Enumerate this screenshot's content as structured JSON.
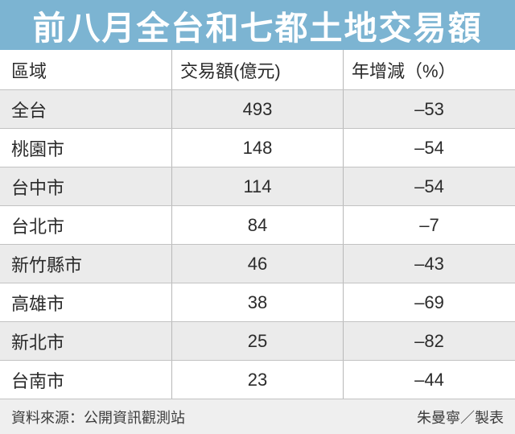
{
  "title": "前八月全台和七都土地交易額",
  "colors": {
    "title_bar_bg": "#7cb4d2",
    "title_text": "#ffffff",
    "stripe_row_bg": "#ebebeb",
    "footer_bg": "#efefef",
    "grid_line": "#c2c2c2"
  },
  "table": {
    "headers": [
      "區域",
      "交易額(億元)",
      "年增減（%）"
    ],
    "rows": [
      {
        "region": "全台",
        "amount": "493",
        "yoy": "–53"
      },
      {
        "region": "桃園市",
        "amount": "148",
        "yoy": "–54"
      },
      {
        "region": "台中市",
        "amount": "114",
        "yoy": "–54"
      },
      {
        "region": "台北市",
        "amount": "84",
        "yoy": "–7"
      },
      {
        "region": "新竹縣市",
        "amount": "46",
        "yoy": "–43"
      },
      {
        "region": "高雄市",
        "amount": "38",
        "yoy": "–69"
      },
      {
        "region": "新北市",
        "amount": "25",
        "yoy": "–82"
      },
      {
        "region": "台南市",
        "amount": "23",
        "yoy": "–44"
      }
    ]
  },
  "footer": {
    "source": "資料來源：公開資訊觀測站",
    "credit": "朱曼寧／製表"
  },
  "chart_data": {
    "type": "table",
    "title": "前八月全台和七都土地交易額",
    "columns": [
      "區域",
      "交易額(億元)",
      "年增減（%）"
    ],
    "rows": [
      [
        "全台",
        493,
        -53
      ],
      [
        "桃園市",
        148,
        -54
      ],
      [
        "台中市",
        114,
        -54
      ],
      [
        "台北市",
        84,
        -7
      ],
      [
        "新竹縣市",
        46,
        -43
      ],
      [
        "高雄市",
        38,
        -69
      ],
      [
        "新北市",
        25,
        -82
      ],
      [
        "台南市",
        23,
        -44
      ]
    ],
    "source": "公開資訊觀測站",
    "credit": "朱曼寧／製表"
  }
}
